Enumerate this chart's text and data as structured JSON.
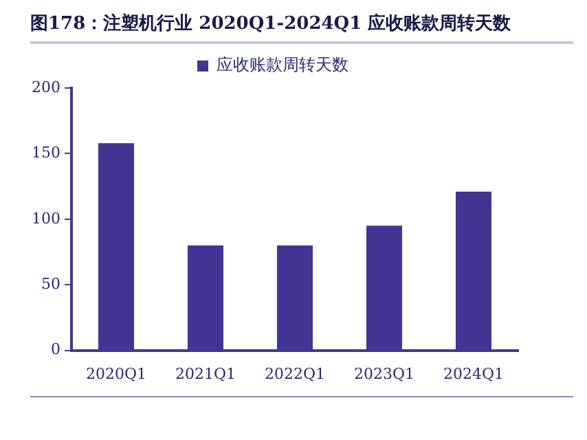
{
  "chart_data": {
    "type": "bar",
    "title": "图178：注塑机行业 2020Q1-2024Q1 应收账款周转天数",
    "categories": [
      "2020Q1",
      "2021Q1",
      "2022Q1",
      "2023Q1",
      "2024Q1"
    ],
    "series": [
      {
        "name": "应收账款周转天数",
        "color": "#433594",
        "values": [
          158,
          80,
          80,
          95,
          121
        ]
      }
    ],
    "ylim": [
      0,
      200
    ],
    "yticks": [
      0,
      50,
      100,
      150,
      200
    ],
    "grid": false,
    "legend": "top"
  }
}
